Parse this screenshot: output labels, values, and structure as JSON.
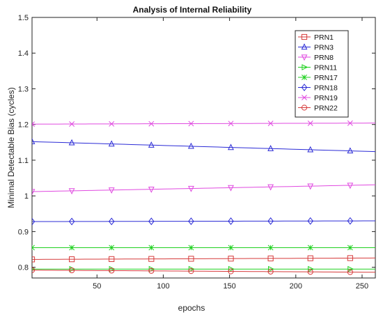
{
  "chart_data": {
    "type": "line",
    "title": "Analysis of Internal Reliability",
    "xlabel": "epochs",
    "ylabel": "Minimal Detectable Bias (cycles)",
    "xlim": [
      1,
      260
    ],
    "ylim": [
      0.77,
      1.5
    ],
    "xticks": [
      50,
      100,
      150,
      200,
      250
    ],
    "yticks": [
      0.8,
      0.9,
      1.0,
      1.1,
      1.2,
      1.3,
      1.4,
      1.5
    ],
    "ytick_labels": [
      "0.8",
      "0.9",
      "1",
      "1.1",
      "1.2",
      "1.3",
      "1.4",
      "1.5"
    ],
    "legend_position": "top-right",
    "grid": false,
    "marker_x": [
      1,
      31,
      61,
      91,
      121,
      151,
      181,
      211,
      241
    ],
    "series": [
      {
        "name": "PRN1",
        "color": "#d63a3a",
        "marker": "square",
        "start": 0.822,
        "end": 0.826
      },
      {
        "name": "PRN3",
        "color": "#2b2bd6",
        "marker": "triangle-up",
        "start": 1.152,
        "end": 1.124
      },
      {
        "name": "PRN8",
        "color": "#e04ae0",
        "marker": "triangle-down",
        "start": 1.012,
        "end": 1.031
      },
      {
        "name": "PRN11",
        "color": "#1fd11f",
        "marker": "triangle-right",
        "start": 0.795,
        "end": 0.795
      },
      {
        "name": "PRN17",
        "color": "#1fd11f",
        "marker": "star",
        "start": 0.855,
        "end": 0.855
      },
      {
        "name": "PRN18",
        "color": "#2b2bd6",
        "marker": "diamond",
        "start": 0.928,
        "end": 0.93
      },
      {
        "name": "PRN19",
        "color": "#e04ae0",
        "marker": "x",
        "start": 1.201,
        "end": 1.204
      },
      {
        "name": "PRN22",
        "color": "#d63a3a",
        "marker": "circle",
        "start": 0.792,
        "end": 0.786
      }
    ]
  }
}
